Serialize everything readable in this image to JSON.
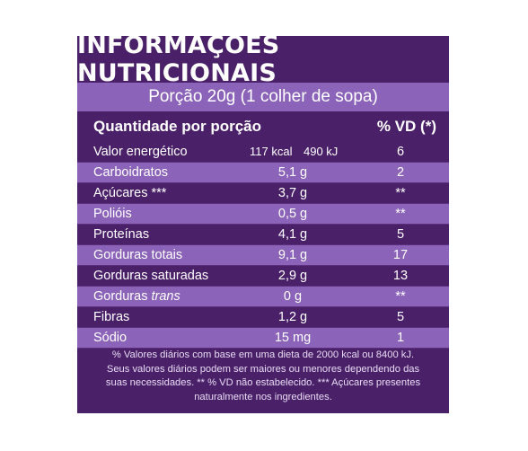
{
  "title": "INFORMAÇÕES NUTRICIONAIS",
  "portion": "Porção 20g (1 colher de sopa)",
  "header": {
    "quantity": "Quantidade por porção",
    "vd": "% VD (*)"
  },
  "energy": {
    "name": "Valor energético",
    "kcal": "117 kcal",
    "kj": "490 kJ",
    "vd": "6"
  },
  "rows": [
    {
      "name": "Carboidratos",
      "amount": "5,1 g",
      "vd": "2"
    },
    {
      "name": "Açúcares ***",
      "amount": "3,7 g",
      "vd": "**"
    },
    {
      "name": "Polióis",
      "amount": "0,5 g",
      "vd": "**"
    },
    {
      "name": "Proteínas",
      "amount": "4,1 g",
      "vd": "5"
    },
    {
      "name": "Gorduras totais",
      "amount": "9,1 g",
      "vd": "17"
    },
    {
      "name": "Gorduras saturadas",
      "amount": "2,9 g",
      "vd": "13"
    },
    {
      "name_prefix": "Gorduras ",
      "name_italic": "trans",
      "amount": "0 g",
      "vd": "**"
    },
    {
      "name": "Fibras",
      "amount": "1,2 g",
      "vd": "5"
    },
    {
      "name": "Sódio",
      "amount": "15 mg",
      "vd": "1"
    }
  ],
  "footnote": {
    "line1": "% Valores diários com base em uma dieta de 2000 kcal ou 8400 kJ.",
    "line2": "Seus valores diários podem ser maiores ou menores dependendo das",
    "line3": "suas necessidades. ** % VD não estabelecido. *** Açúcares presentes",
    "line4": "naturalmente nos ingredientes."
  },
  "colors": {
    "dark_purple": "#4a2069",
    "light_purple": "#8b63b8"
  }
}
